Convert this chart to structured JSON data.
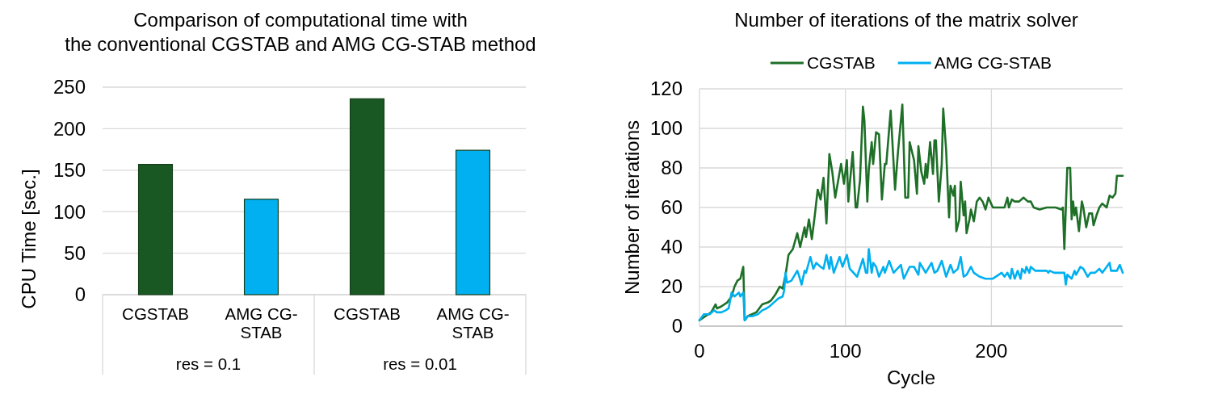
{
  "chart_data": [
    {
      "type": "bar",
      "title": "Comparison of computational time with\nthe conventional CGSTAB and AMG CG-STAB method",
      "ylabel": "CPU Time [sec.]",
      "categories": [
        "res = 0.1",
        "res = 0.01"
      ],
      "series": [
        {
          "name": "CGSTAB",
          "color": "#1a5823",
          "values": [
            157,
            236
          ]
        },
        {
          "name": "AMG CG-STAB",
          "color": "#00b0f0",
          "values": [
            115,
            174
          ]
        }
      ],
      "ylim": [
        0,
        250
      ],
      "yticks": [
        0,
        50,
        100,
        150,
        200,
        250
      ],
      "grid": "y"
    },
    {
      "type": "line",
      "title": "Number of iterations of the matrix solver",
      "xlabel": "Cycle",
      "ylabel": "Number of iterations",
      "legend": "top",
      "xlim": [
        0,
        290
      ],
      "xticks": [
        0,
        100,
        200
      ],
      "ylim": [
        0,
        120
      ],
      "yticks": [
        0,
        20,
        40,
        60,
        80,
        100,
        120
      ],
      "grid": true,
      "series": [
        {
          "name": "CGSTAB",
          "color": "#1e6f27",
          "x": [
            0,
            4,
            8,
            11,
            12,
            15,
            19,
            22,
            24,
            26,
            28,
            30,
            31,
            33,
            36,
            39,
            43,
            47,
            49,
            52,
            55,
            57,
            59,
            61,
            64,
            67,
            69,
            72,
            73,
            75,
            77,
            79,
            81,
            83,
            85,
            87,
            89,
            91,
            93,
            97,
            99,
            101,
            102,
            103,
            105,
            107,
            108,
            110,
            112,
            113,
            115,
            116,
            118,
            119,
            121,
            123,
            125,
            127,
            128,
            131,
            134,
            136,
            139,
            141,
            143,
            144,
            147,
            149,
            150,
            152,
            154,
            155,
            156,
            158,
            160,
            161,
            162,
            164,
            166,
            167,
            169,
            171,
            172,
            174,
            175,
            176,
            178,
            179,
            181,
            182,
            183,
            185,
            186,
            188,
            190,
            192,
            194,
            196,
            198,
            201,
            205,
            209,
            211,
            212,
            214,
            216,
            219,
            222,
            225,
            227,
            229,
            233,
            238,
            244,
            248,
            249,
            250,
            252,
            254,
            255,
            256,
            257,
            258,
            260,
            262,
            263,
            265,
            267,
            269,
            270,
            272,
            274,
            276,
            279,
            281,
            283,
            285,
            286,
            288,
            290
          ],
          "values": [
            3,
            5,
            7,
            11,
            9,
            10,
            12,
            15,
            20,
            23,
            24,
            30,
            3,
            5,
            6,
            7,
            11,
            12,
            13,
            16,
            20,
            19,
            26,
            36,
            39,
            47,
            40,
            50,
            45,
            54,
            44,
            56,
            69,
            64,
            75,
            52,
            87,
            78,
            65,
            82,
            72,
            84,
            63,
            72,
            88,
            60,
            60,
            74,
            111,
            104,
            63,
            79,
            93,
            82,
            98,
            97,
            64,
            82,
            82,
            109,
            69,
            88,
            112,
            65,
            65,
            93,
            84,
            67,
            91,
            78,
            72,
            82,
            75,
            93,
            77,
            94,
            94,
            63,
            82,
            110,
            89,
            55,
            71,
            66,
            71,
            48,
            54,
            73,
            56,
            63,
            47,
            54,
            59,
            53,
            63,
            65,
            63,
            59,
            65,
            60,
            60,
            60,
            65,
            60,
            64,
            63,
            63,
            65,
            63,
            63,
            60,
            59,
            60,
            60,
            59,
            60,
            39,
            80,
            80,
            54,
            63,
            56,
            60,
            48,
            63,
            60,
            50,
            57,
            57,
            51,
            56,
            60,
            62,
            60,
            66,
            65,
            67,
            76,
            76,
            76
          ]
        },
        {
          "name": "AMG CG-STAB",
          "color": "#00b0f0",
          "x": [
            0,
            3,
            7,
            10,
            12,
            15,
            18,
            20,
            22,
            24,
            27,
            28,
            30,
            31,
            33,
            36,
            40,
            43,
            46,
            48,
            51,
            54,
            57,
            58,
            59,
            60,
            63,
            67,
            68,
            70,
            72,
            73,
            76,
            78,
            80,
            83,
            85,
            87,
            89,
            90,
            92,
            96,
            98,
            101,
            103,
            108,
            112,
            114,
            115,
            116,
            118,
            119,
            121,
            123,
            126,
            127,
            130,
            133,
            138,
            140,
            144,
            147,
            150,
            151,
            155,
            159,
            161,
            163,
            166,
            169,
            172,
            174,
            177,
            179,
            181,
            183,
            186,
            188,
            190,
            192,
            196,
            198,
            201,
            205,
            207,
            209,
            211,
            213,
            214,
            216,
            218,
            220,
            221,
            223,
            224,
            226,
            227,
            230,
            238,
            239,
            240,
            243,
            250,
            251,
            252,
            255,
            257,
            258,
            261,
            263,
            266,
            268,
            271,
            274,
            276,
            278,
            281,
            282,
            286,
            288,
            290
          ],
          "values": [
            3,
            6,
            6,
            8,
            7,
            7,
            8,
            9,
            17,
            15,
            17,
            15,
            17,
            3,
            5,
            5,
            6,
            8,
            9,
            10,
            12,
            14,
            15,
            18,
            27,
            22,
            23,
            28,
            26,
            21,
            28,
            27,
            35,
            29,
            32,
            30,
            29,
            36,
            29,
            35,
            27,
            35,
            30,
            36,
            29,
            25,
            34,
            27,
            27,
            39,
            27,
            32,
            30,
            25,
            30,
            27,
            33,
            27,
            31,
            24,
            30,
            30,
            26,
            32,
            27,
            32,
            27,
            28,
            33,
            25,
            31,
            27,
            29,
            35,
            25,
            26,
            30,
            27,
            26,
            25,
            24,
            24,
            24,
            26,
            27,
            25,
            27,
            24,
            29,
            24,
            28,
            24,
            29,
            27,
            30,
            27,
            30,
            28,
            28,
            27,
            28,
            27,
            27,
            21,
            26,
            24,
            28,
            26,
            30,
            29,
            25,
            27,
            27,
            29,
            27,
            29,
            32,
            28,
            28,
            31,
            27
          ]
        }
      ]
    }
  ]
}
